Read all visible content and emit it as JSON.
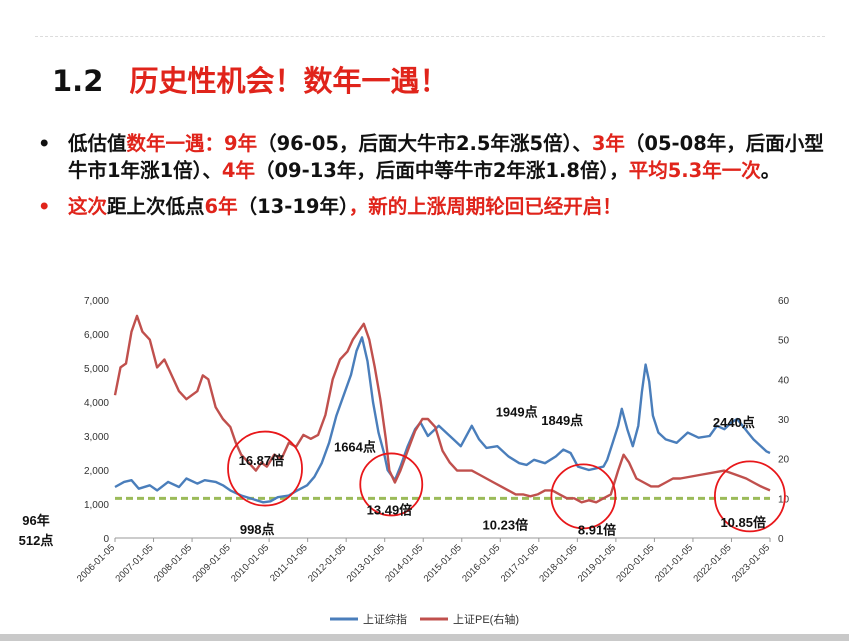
{
  "slide": {
    "number": "1.2",
    "title": "历史性机会！数年一遇！",
    "bullet1": {
      "prefix": "低估值",
      "hl1": "数年一遇：9年",
      "t1": "（96-05，后面大牛市2.5年涨5倍）、",
      "hl2": "3年",
      "t2": "（05-08年，后面小型牛市1年涨1倍）、",
      "hl3": "4年",
      "t3": "（09-13年，后面中等牛市2年涨1.8倍），",
      "hl4": "平均5.3年一次",
      "t4": "。"
    },
    "bullet2": {
      "p1": "这次",
      "b1": "距上次低点",
      "p2": "6年",
      "b2": "（13-19年）",
      "p3": "，新的上涨周期轮回已经开启！"
    }
  },
  "colors": {
    "accent_red": "#e0241b",
    "index_blue": "#4a7ebb",
    "pe_red": "#c0504d",
    "guide_green": "#9bbb59",
    "circle_red": "#e8171a"
  },
  "chart_data": {
    "type": "line",
    "x_ticks": [
      "2006-01-05",
      "2007-01-05",
      "2008-01-05",
      "2009-01-05",
      "2010-01-05",
      "2011-01-05",
      "2012-01-05",
      "2013-01-05",
      "2014-01-05",
      "2015-01-05",
      "2016-01-05",
      "2017-01-05",
      "2018-01-05",
      "2019-01-05",
      "2020-01-05",
      "2021-01-05",
      "2022-01-05",
      "2023-01-05"
    ],
    "y_left": {
      "min": 0,
      "max": 7000,
      "ticks": [
        "0",
        "1,000",
        "2,000",
        "3,000",
        "4,000",
        "5,000",
        "6,000",
        "7,000"
      ]
    },
    "y_right": {
      "min": 0,
      "max": 60,
      "ticks": [
        "0",
        "10",
        "20",
        "30",
        "40",
        "50",
        "60"
      ]
    },
    "series": [
      {
        "name": "上证综指",
        "axis": "left",
        "color": "#4a7ebb",
        "points": [
          [
            2005.55,
            1500
          ],
          [
            2005.8,
            1650
          ],
          [
            2006.0,
            1700
          ],
          [
            2006.2,
            1450
          ],
          [
            2006.5,
            1550
          ],
          [
            2006.7,
            1400
          ],
          [
            2007.0,
            1650
          ],
          [
            2007.3,
            1500
          ],
          [
            2007.5,
            1750
          ],
          [
            2007.8,
            1600
          ],
          [
            2008.0,
            1700
          ],
          [
            2008.3,
            1650
          ],
          [
            2008.5,
            1550
          ],
          [
            2008.7,
            1400
          ],
          [
            2009.0,
            1250
          ],
          [
            2009.3,
            1150
          ],
          [
            2009.6,
            1050
          ],
          [
            2009.8,
            1080
          ],
          [
            2010.0,
            1200
          ],
          [
            2010.3,
            1250
          ],
          [
            2010.5,
            1380
          ],
          [
            2010.8,
            1550
          ],
          [
            2011.0,
            1800
          ],
          [
            2011.2,
            2200
          ],
          [
            2011.4,
            2800
          ],
          [
            2011.6,
            3600
          ],
          [
            2011.8,
            4200
          ],
          [
            2012.0,
            4800
          ],
          [
            2012.15,
            5500
          ],
          [
            2012.3,
            5900
          ],
          [
            2012.45,
            5200
          ],
          [
            2012.6,
            4000
          ],
          [
            2012.75,
            3100
          ],
          [
            2012.9,
            2500
          ],
          [
            2013.0,
            2000
          ],
          [
            2013.2,
            1700
          ],
          [
            2013.35,
            2100
          ],
          [
            2013.55,
            2700
          ],
          [
            2013.75,
            3200
          ],
          [
            2013.9,
            3400
          ],
          [
            2014.1,
            3000
          ],
          [
            2014.4,
            3300
          ],
          [
            2014.6,
            3100
          ],
          [
            2014.8,
            2900
          ],
          [
            2015.0,
            2700
          ],
          [
            2015.3,
            3300
          ],
          [
            2015.5,
            2900
          ],
          [
            2015.7,
            2650
          ],
          [
            2016.0,
            2700
          ],
          [
            2016.3,
            2400
          ],
          [
            2016.6,
            2200
          ],
          [
            2016.8,
            2150
          ],
          [
            2017.0,
            2300
          ],
          [
            2017.3,
            2200
          ],
          [
            2017.6,
            2400
          ],
          [
            2017.8,
            2600
          ],
          [
            2018.0,
            2500
          ],
          [
            2018.2,
            2100
          ],
          [
            2018.5,
            2000
          ],
          [
            2018.7,
            2050
          ],
          [
            2018.9,
            2100
          ],
          [
            2019.0,
            2300
          ],
          [
            2019.15,
            2800
          ],
          [
            2019.3,
            3300
          ],
          [
            2019.4,
            3800
          ],
          [
            2019.55,
            3200
          ],
          [
            2019.7,
            2700
          ],
          [
            2019.85,
            3300
          ],
          [
            2019.95,
            4300
          ],
          [
            2020.05,
            5100
          ],
          [
            2020.15,
            4600
          ],
          [
            2020.25,
            3600
          ],
          [
            2020.4,
            3100
          ],
          [
            2020.6,
            2900
          ],
          [
            2020.9,
            2800
          ],
          [
            2021.2,
            3100
          ],
          [
            2021.5,
            2950
          ],
          [
            2021.8,
            3000
          ],
          [
            2022.0,
            3300
          ],
          [
            2022.2,
            3200
          ],
          [
            2022.4,
            3400
          ],
          [
            2022.55,
            3500
          ],
          [
            2022.7,
            3300
          ],
          [
            2022.85,
            3100
          ],
          [
            2023.0,
            2900
          ],
          [
            2023.2,
            2700
          ],
          [
            2023.35,
            2550
          ],
          [
            2023.45,
            2500
          ]
        ]
      },
      {
        "name": "上证PE(右轴)",
        "axis": "right",
        "color": "#c0504d",
        "points": [
          [
            2005.55,
            36
          ],
          [
            2005.7,
            43
          ],
          [
            2005.85,
            44
          ],
          [
            2006.0,
            52
          ],
          [
            2006.15,
            56
          ],
          [
            2006.3,
            52
          ],
          [
            2006.5,
            50
          ],
          [
            2006.7,
            43
          ],
          [
            2006.9,
            45
          ],
          [
            2007.1,
            41
          ],
          [
            2007.3,
            37
          ],
          [
            2007.5,
            35
          ],
          [
            2007.65,
            36
          ],
          [
            2007.8,
            37
          ],
          [
            2007.95,
            41
          ],
          [
            2008.1,
            40
          ],
          [
            2008.3,
            33
          ],
          [
            2008.5,
            30
          ],
          [
            2008.7,
            28
          ],
          [
            2008.85,
            24
          ],
          [
            2009.0,
            21
          ],
          [
            2009.2,
            19
          ],
          [
            2009.4,
            17
          ],
          [
            2009.55,
            19
          ],
          [
            2009.7,
            18
          ],
          [
            2009.9,
            21
          ],
          [
            2010.1,
            20
          ],
          [
            2010.3,
            24
          ],
          [
            2010.5,
            23
          ],
          [
            2010.7,
            26
          ],
          [
            2010.9,
            25
          ],
          [
            2011.1,
            26
          ],
          [
            2011.3,
            31
          ],
          [
            2011.5,
            40
          ],
          [
            2011.7,
            45
          ],
          [
            2011.9,
            47
          ],
          [
            2012.05,
            50
          ],
          [
            2012.2,
            52
          ],
          [
            2012.35,
            54
          ],
          [
            2012.5,
            50
          ],
          [
            2012.65,
            43
          ],
          [
            2012.8,
            35
          ],
          [
            2012.95,
            25
          ],
          [
            2013.05,
            17
          ],
          [
            2013.2,
            14
          ],
          [
            2013.35,
            17
          ],
          [
            2013.55,
            22
          ],
          [
            2013.75,
            27
          ],
          [
            2013.95,
            30
          ],
          [
            2014.1,
            30
          ],
          [
            2014.3,
            28
          ],
          [
            2014.5,
            22
          ],
          [
            2014.7,
            19
          ],
          [
            2014.9,
            17
          ],
          [
            2015.1,
            17
          ],
          [
            2015.3,
            17
          ],
          [
            2015.5,
            16
          ],
          [
            2015.7,
            15
          ],
          [
            2015.9,
            14
          ],
          [
            2016.1,
            13
          ],
          [
            2016.3,
            12
          ],
          [
            2016.5,
            11
          ],
          [
            2016.7,
            11
          ],
          [
            2016.9,
            10.5
          ],
          [
            2017.1,
            11
          ],
          [
            2017.3,
            12
          ],
          [
            2017.5,
            12
          ],
          [
            2017.7,
            11
          ],
          [
            2017.9,
            10
          ],
          [
            2018.1,
            10
          ],
          [
            2018.3,
            9
          ],
          [
            2018.5,
            9.5
          ],
          [
            2018.7,
            9
          ],
          [
            2018.9,
            10
          ],
          [
            2019.1,
            11
          ],
          [
            2019.3,
            17
          ],
          [
            2019.45,
            21
          ],
          [
            2019.6,
            19
          ],
          [
            2019.8,
            15
          ],
          [
            2020.0,
            14
          ],
          [
            2020.2,
            13
          ],
          [
            2020.4,
            13
          ],
          [
            2020.6,
            14
          ],
          [
            2020.8,
            15
          ],
          [
            2021.0,
            15
          ],
          [
            2021.3,
            15.5
          ],
          [
            2021.6,
            16
          ],
          [
            2021.9,
            16.5
          ],
          [
            2022.2,
            17
          ],
          [
            2022.5,
            16
          ],
          [
            2022.8,
            15
          ],
          [
            2023.0,
            14
          ],
          [
            2023.2,
            13
          ],
          [
            2023.45,
            12
          ]
        ]
      }
    ],
    "annotations": [
      {
        "label": "16.87倍",
        "x": 2009.55,
        "value": 16.87,
        "axis": "right"
      },
      {
        "label": "998点",
        "x": 2009.6,
        "value": 998,
        "axis": "left"
      },
      {
        "label": "1664点",
        "x": 2013.2,
        "value": 1664,
        "axis": "left"
      },
      {
        "label": "13.49倍",
        "x": 2013.05,
        "value": 13.49,
        "axis": "right"
      },
      {
        "label": "1949点",
        "x": 2016.8,
        "value": 1949,
        "axis": "left"
      },
      {
        "label": "10.23倍",
        "x": 2016.9,
        "value": 10.23,
        "axis": "right"
      },
      {
        "label": "1849点",
        "x": 2018.1,
        "value": 1849,
        "axis": "left"
      },
      {
        "label": "8.91倍",
        "x": 2018.45,
        "value": 8.91,
        "axis": "right"
      },
      {
        "label": "2440点",
        "x": 2022.9,
        "value": 2440,
        "axis": "left"
      },
      {
        "label": "10.85倍",
        "x": 2022.8,
        "value": 10.85,
        "axis": "right"
      }
    ],
    "outside_label": "96年\n512点",
    "guide_level_right_axis": 10,
    "legend": {
      "position": "bottom",
      "items": [
        "上证综指",
        "上证PE(右轴)"
      ]
    }
  }
}
